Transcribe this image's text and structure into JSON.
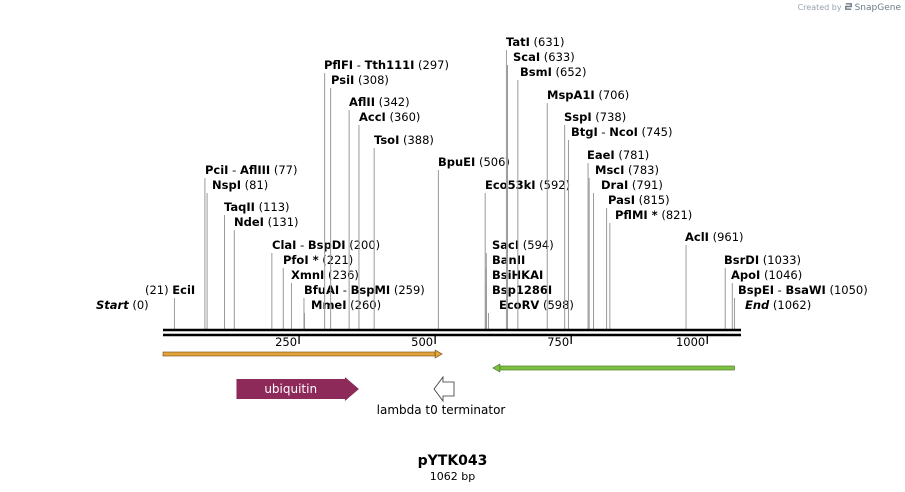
{
  "credit": {
    "prefix": "Created by",
    "brand": "SnapGene"
  },
  "map": {
    "name": "pYTK043",
    "length_label": "1062 bp",
    "length": 1062,
    "colors": {
      "backbone": "#000000",
      "ubiquitin": "#8e2a59",
      "orange_bar": "#e3a23a",
      "green_bar": "#7dc243",
      "terminator": "#ffffff"
    }
  },
  "ticks": [
    {
      "pos": 250,
      "label": "250"
    },
    {
      "pos": 500,
      "label": "500"
    },
    {
      "pos": 750,
      "label": "750"
    },
    {
      "pos": 1000,
      "label": "1000"
    }
  ],
  "sites": [
    {
      "pos": 0,
      "parts": [
        "Start"
      ],
      "num": "(0)",
      "italic": true
    },
    {
      "pos": 21,
      "parts": [
        "EciI"
      ],
      "num": "(21)",
      "left": true
    },
    {
      "pos": 77,
      "parts": [
        "PciI",
        "AflIII"
      ],
      "num": "(77)"
    },
    {
      "pos": 81,
      "parts": [
        "NspI"
      ],
      "num": "(81)"
    },
    {
      "pos": 113,
      "parts": [
        "TaqII"
      ],
      "num": "(113)"
    },
    {
      "pos": 131,
      "parts": [
        "NdeI"
      ],
      "num": "(131)"
    },
    {
      "pos": 200,
      "parts": [
        "ClaI",
        "BspDI"
      ],
      "num": "(200)"
    },
    {
      "pos": 221,
      "parts": [
        "PfoI *"
      ],
      "num": "(221)"
    },
    {
      "pos": 236,
      "parts": [
        "XmnI"
      ],
      "num": "(236)"
    },
    {
      "pos": 259,
      "parts": [
        "BfuAI",
        "BspMI"
      ],
      "num": "(259)"
    },
    {
      "pos": 260,
      "parts": [
        "MmeI"
      ],
      "num": "(260)"
    },
    {
      "pos": 297,
      "parts": [
        "PflFI",
        "Tth111I"
      ],
      "num": "(297)"
    },
    {
      "pos": 308,
      "parts": [
        "PsiI"
      ],
      "num": "(308)"
    },
    {
      "pos": 342,
      "parts": [
        "AflII"
      ],
      "num": "(342)"
    },
    {
      "pos": 360,
      "parts": [
        "AccI"
      ],
      "num": "(360)"
    },
    {
      "pos": 388,
      "parts": [
        "TsoI"
      ],
      "num": "(388)"
    },
    {
      "pos": 506,
      "parts": [
        "BpuEI"
      ],
      "num": "(506)"
    },
    {
      "pos": 592,
      "parts": [
        "Eco53kI"
      ],
      "num": "(592)"
    },
    {
      "pos": 594,
      "parts": [
        "SacI"
      ],
      "num": "(594)"
    },
    {
      "pos": 594,
      "parts": [
        "BanII"
      ],
      "num": ""
    },
    {
      "pos": 594,
      "parts": [
        "BsiHKAI"
      ],
      "num": ""
    },
    {
      "pos": 594,
      "parts": [
        "Bsp1286I"
      ],
      "num": ""
    },
    {
      "pos": 598,
      "parts": [
        "EcoRV"
      ],
      "num": "(598)"
    },
    {
      "pos": 631,
      "parts": [
        "TatI"
      ],
      "num": "(631)"
    },
    {
      "pos": 633,
      "parts": [
        "ScaI"
      ],
      "num": "(633)"
    },
    {
      "pos": 652,
      "parts": [
        "BsmI"
      ],
      "num": "(652)"
    },
    {
      "pos": 706,
      "parts": [
        "MspA1I"
      ],
      "num": "(706)"
    },
    {
      "pos": 738,
      "parts": [
        "SspI"
      ],
      "num": "(738)"
    },
    {
      "pos": 745,
      "parts": [
        "BtgI",
        "NcoI"
      ],
      "num": "(745)"
    },
    {
      "pos": 781,
      "parts": [
        "EaeI"
      ],
      "num": "(781)"
    },
    {
      "pos": 783,
      "parts": [
        "MscI"
      ],
      "num": "(783)"
    },
    {
      "pos": 791,
      "parts": [
        "DraI"
      ],
      "num": "(791)"
    },
    {
      "pos": 815,
      "parts": [
        "PasI"
      ],
      "num": "(815)"
    },
    {
      "pos": 821,
      "parts": [
        "PflMI *"
      ],
      "num": "(821)"
    },
    {
      "pos": 961,
      "parts": [
        "AclI"
      ],
      "num": "(961)"
    },
    {
      "pos": 1033,
      "parts": [
        "BsrDI"
      ],
      "num": "(1033)"
    },
    {
      "pos": 1046,
      "parts": [
        "ApoI"
      ],
      "num": "(1046)"
    },
    {
      "pos": 1050,
      "parts": [
        "BspEI",
        "BsaWI"
      ],
      "num": "(1050)"
    },
    {
      "pos": 1062,
      "parts": [
        "End"
      ],
      "num": "(1062)",
      "italic": true
    }
  ],
  "features": [
    {
      "name": "ubiquitin",
      "start": 135,
      "end": 360,
      "direction": "forward",
      "kind": "cds"
    },
    {
      "name": "lambda t0 terminator",
      "start": 500,
      "end": 540,
      "direction": "reverse",
      "kind": "terminator"
    },
    {
      "name": "",
      "start": 0,
      "end": 500,
      "direction": "forward",
      "kind": "bar-orange"
    },
    {
      "name": "",
      "start": 608,
      "end": 1050,
      "direction": "reverse",
      "kind": "bar-green"
    }
  ]
}
